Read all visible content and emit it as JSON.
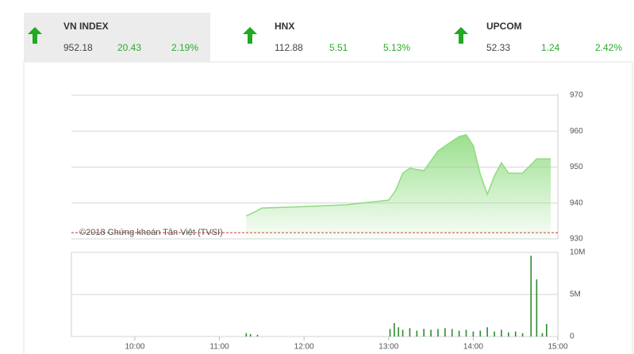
{
  "indices": [
    {
      "name": "VN INDEX",
      "value": "952.18",
      "change": "20.43",
      "percent": "2.19%"
    },
    {
      "name": "HNX",
      "value": "112.88",
      "change": "5.51",
      "percent": "5.13%"
    },
    {
      "name": "UPCOM",
      "value": "52.33",
      "change": "1.24",
      "percent": "2.42%"
    }
  ],
  "chart_data": [
    {
      "type": "area",
      "color": "#8fdc80",
      "annotation": "©2018 Chứng khoán Tân Việt (TVSI)",
      "reference_line": 931.75,
      "x": [
        679,
        685,
        690,
        720,
        750,
        780,
        785,
        790,
        795,
        805,
        815,
        825,
        830,
        835,
        840,
        845,
        850,
        855,
        860,
        865,
        875,
        885,
        895
      ],
      "values": [
        936.4,
        937.5,
        938.6,
        939,
        939.5,
        940.8,
        943.5,
        948.3,
        949.7,
        949,
        954.5,
        957.2,
        958.5,
        959,
        956,
        948,
        942.4,
        947.5,
        951.2,
        948.3,
        948.3,
        952.3,
        952.3
      ],
      "xlim": [
        555,
        900
      ],
      "ylim": [
        930,
        970
      ],
      "yticks": [
        930,
        940,
        950,
        960,
        970
      ],
      "grid": true
    },
    {
      "type": "bar",
      "color": "#2e8b2e",
      "x": [
        679,
        682,
        687,
        781,
        784,
        787,
        790,
        795,
        800,
        805,
        810,
        815,
        820,
        825,
        830,
        835,
        840,
        845,
        850,
        855,
        860,
        865,
        870,
        875,
        881,
        885,
        889,
        892
      ],
      "values": [
        400000,
        300000,
        200000,
        900000,
        1600000,
        1100000,
        800000,
        1000000,
        700000,
        900000,
        800000,
        900000,
        1000000,
        900000,
        700000,
        800000,
        600000,
        700000,
        1100000,
        600000,
        800000,
        500000,
        600000,
        400000,
        9600000,
        6800000,
        400000,
        1500000
      ],
      "xlim": [
        555,
        900
      ],
      "xticks": [
        {
          "value": 600,
          "label": "10:00"
        },
        {
          "value": 660,
          "label": "11:00"
        },
        {
          "value": 720,
          "label": "12:00"
        },
        {
          "value": 780,
          "label": "13:00"
        },
        {
          "value": 840,
          "label": "14:00"
        },
        {
          "value": 900,
          "label": "15:00"
        }
      ],
      "ylim": [
        0,
        10000000
      ],
      "yticks": [
        0,
        {
          "value": 5000000,
          "label": "5M"
        },
        {
          "value": 10000000,
          "label": "10M"
        }
      ],
      "grid": true
    }
  ]
}
